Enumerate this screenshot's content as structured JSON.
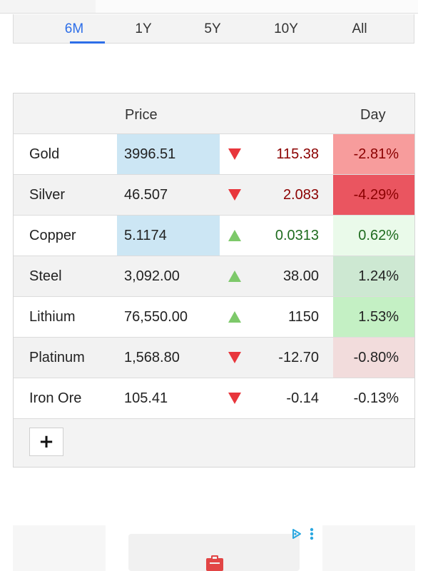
{
  "range_tabs": [
    {
      "label": "6M",
      "active": true
    },
    {
      "label": "1Y",
      "active": false
    },
    {
      "label": "5Y",
      "active": false
    },
    {
      "label": "10Y",
      "active": false
    },
    {
      "label": "All",
      "active": false
    }
  ],
  "table": {
    "headers": {
      "price": "Price",
      "day": "Day"
    },
    "rows": [
      {
        "name": "Gold",
        "price": "3996.51",
        "direction": "down",
        "change": "115.38",
        "day": "-2.81%",
        "price_highlight": true,
        "change_color": "#8b0000",
        "day_color": "#8b0000",
        "day_bg": "#f79c9c"
      },
      {
        "name": "Silver",
        "price": "46.507",
        "direction": "down",
        "change": "2.083",
        "day": "-4.29%",
        "price_highlight": false,
        "change_color": "#8b0000",
        "day_color": "#8b0000",
        "day_bg": "#ea5560"
      },
      {
        "name": "Copper",
        "price": "5.1174",
        "direction": "up",
        "change": "0.0313",
        "day": "0.62%",
        "price_highlight": true,
        "change_color": "#1e6b1e",
        "day_color": "#1e6b1e",
        "day_bg": "#eafaea"
      },
      {
        "name": "Steel",
        "price": "3,092.00",
        "direction": "up",
        "change": "38.00",
        "day": "1.24%",
        "price_highlight": false,
        "change_color": "#222222",
        "day_color": "#222222",
        "day_bg": "#cde8d2"
      },
      {
        "name": "Lithium",
        "price": "76,550.00",
        "direction": "up",
        "change": "1150",
        "day": "1.53%",
        "price_highlight": false,
        "change_color": "#222222",
        "day_color": "#222222",
        "day_bg": "#c4f0c4"
      },
      {
        "name": "Platinum",
        "price": "1,568.80",
        "direction": "down",
        "change": "-12.70",
        "day": "-0.80%",
        "price_highlight": false,
        "change_color": "#222222",
        "day_color": "#222222",
        "day_bg": "#f2dcdc"
      },
      {
        "name": "Iron Ore",
        "price": "105.41",
        "direction": "down",
        "change": "-0.14",
        "day": "-0.13%",
        "price_highlight": false,
        "change_color": "#222222",
        "day_color": "#222222",
        "day_bg": ""
      }
    ]
  },
  "add_button": {
    "label": "+"
  },
  "icons": {
    "up": "triangle-up-icon",
    "down": "triangle-down-icon",
    "ad_choices": "ad-choices-icon",
    "menu": "vertical-dots-icon",
    "clipboard": "clipboard-icon"
  },
  "colors": {
    "accent": "#2d6ee8",
    "up_arrow": "#7dc96a",
    "down_arrow": "#e8363c",
    "price_highlight": "#cce6f4"
  }
}
